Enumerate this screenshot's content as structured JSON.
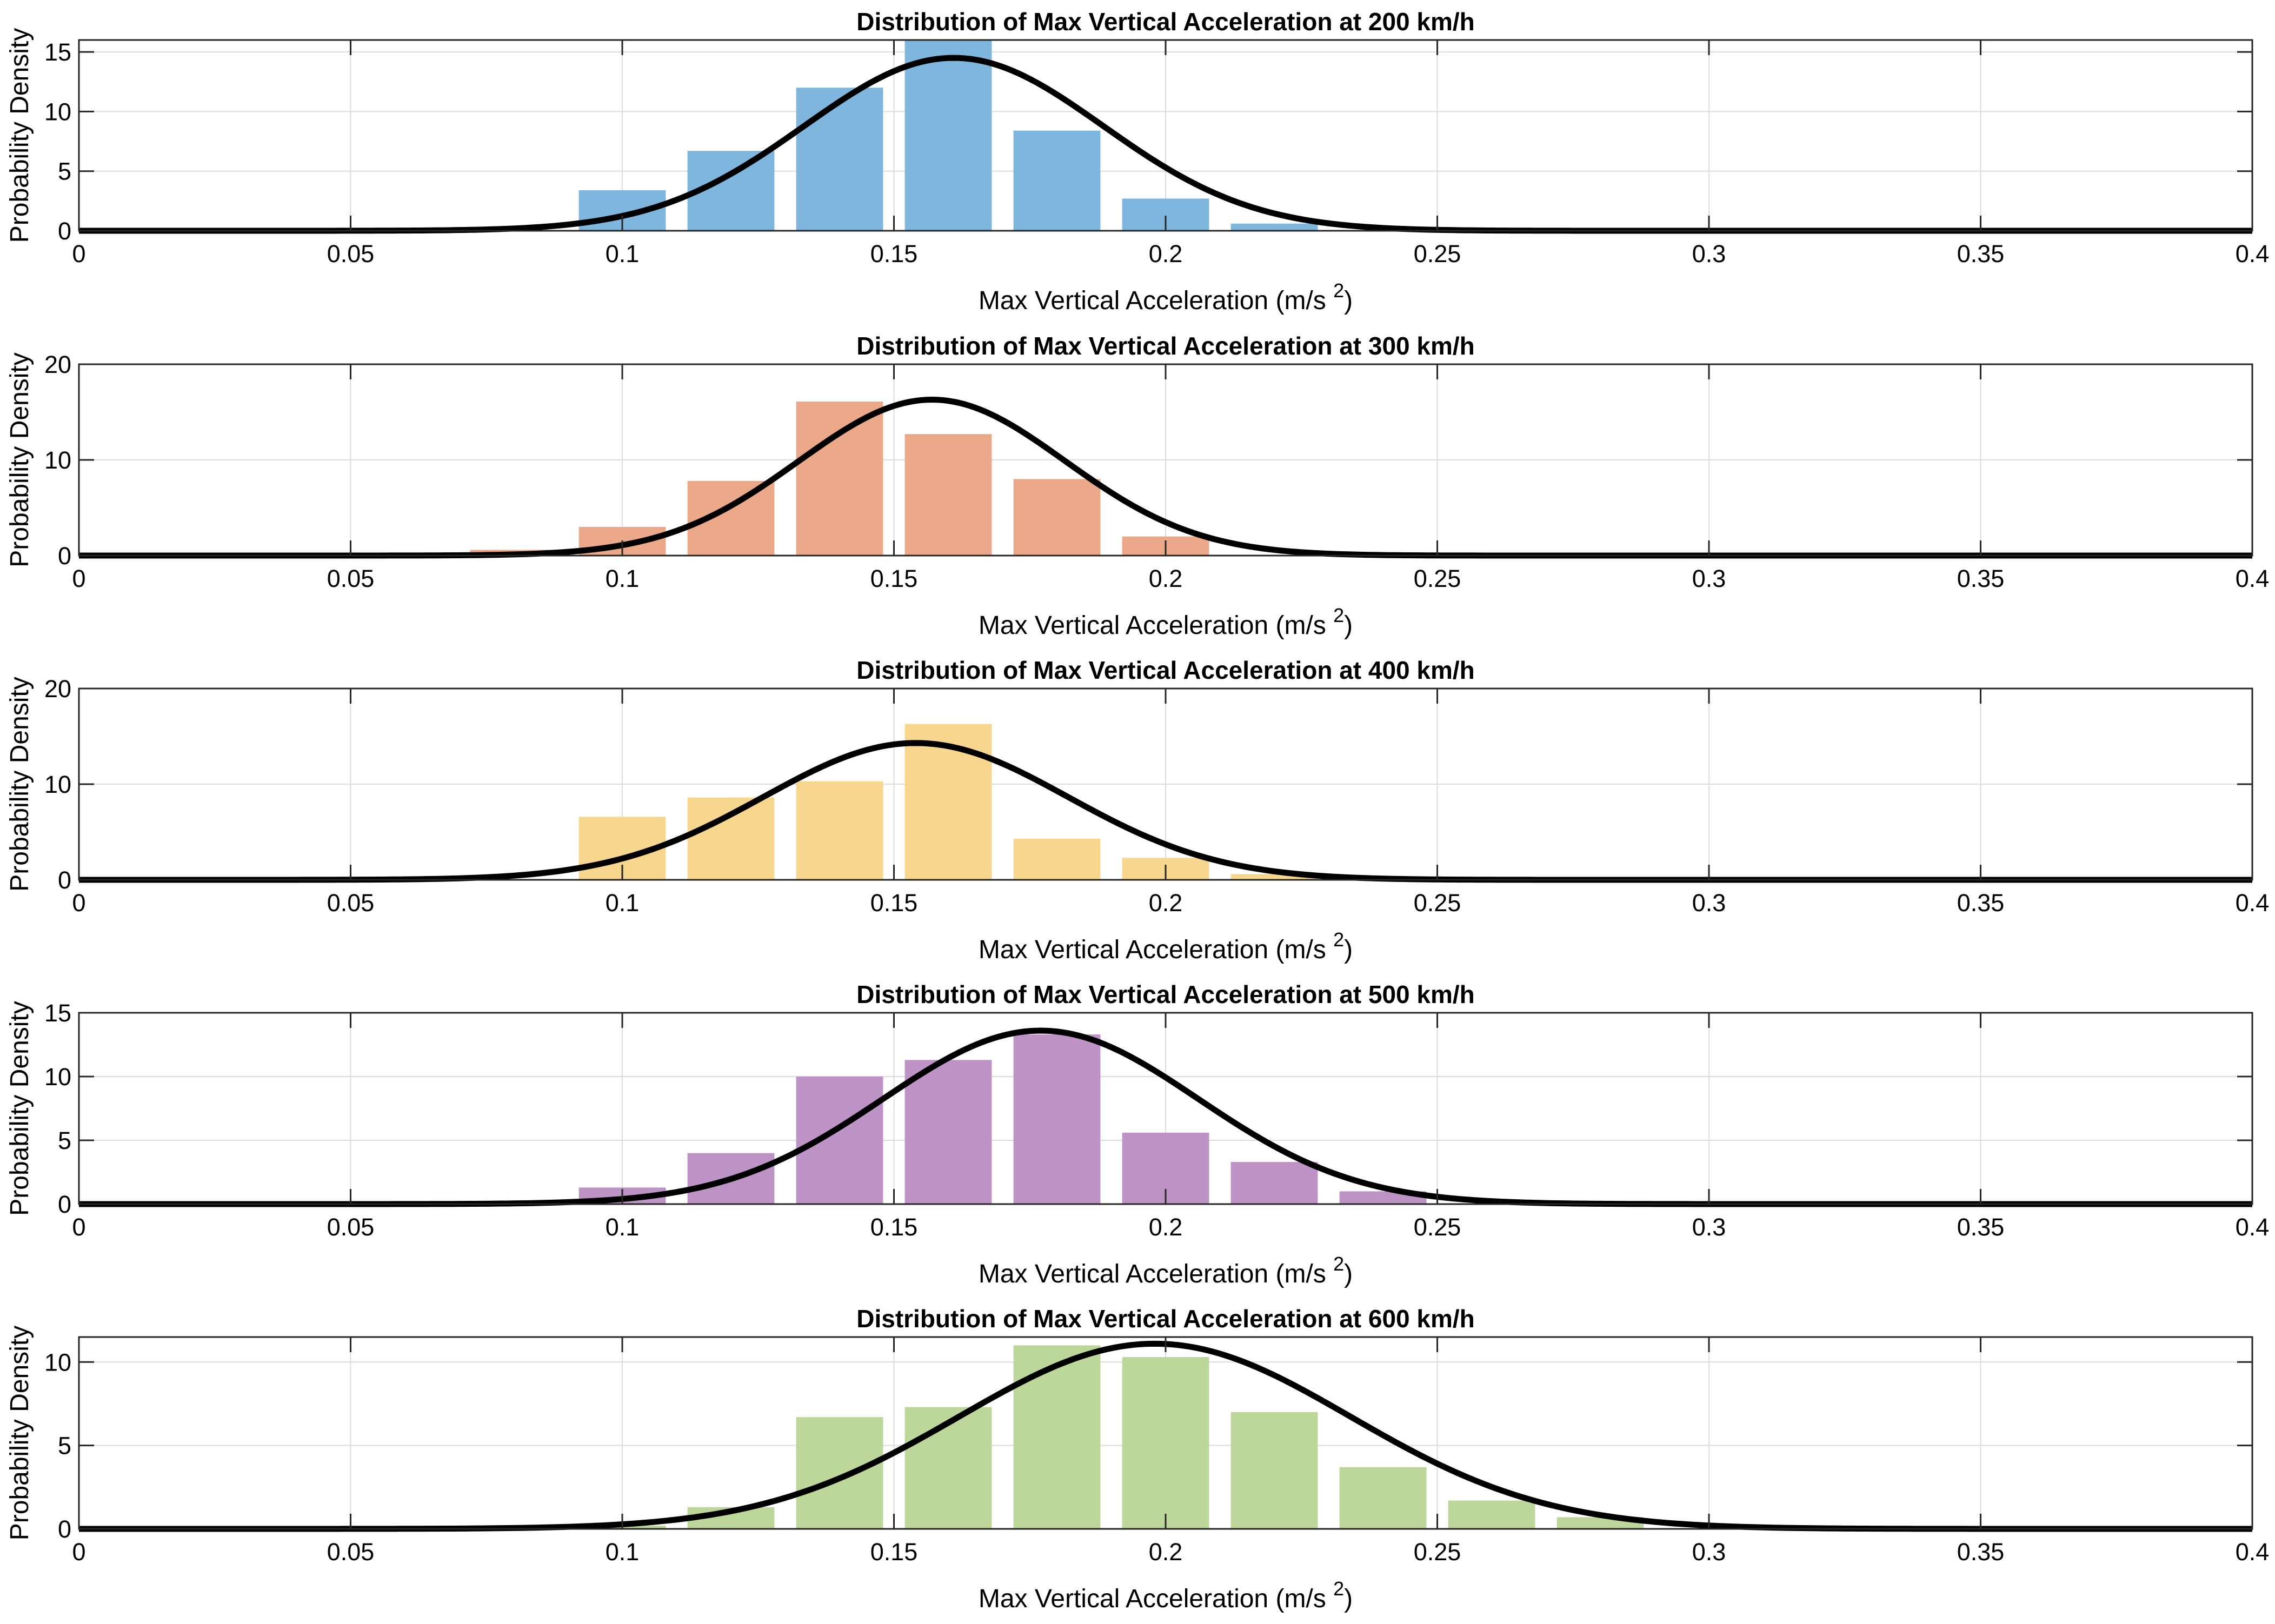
{
  "chart_data": [
    {
      "type": "bar",
      "title": "Distribution of Max Vertical Acceleration at 200 km/h",
      "xlabel_main": "Max Vertical Acceleration (m/s",
      "xlabel_exp": "2",
      "xlabel_close": ")",
      "ylabel": "Probability Density",
      "xlim": [
        0,
        0.4
      ],
      "ylim": [
        0,
        16
      ],
      "xticks": [
        0,
        0.05,
        0.1,
        0.15,
        0.2,
        0.25,
        0.3,
        0.35,
        0.4
      ],
      "xtick_labels": [
        "0",
        "0.05",
        "0.1",
        "0.15",
        "0.2",
        "0.25",
        "0.3",
        "0.35",
        "0.4"
      ],
      "yticks": [
        0,
        5,
        10,
        15
      ],
      "ytick_labels": [
        "0",
        "5",
        "10",
        "15"
      ],
      "bar_color": "#7EB6DD",
      "bin_width": 0.02,
      "bins": [
        0.1,
        0.12,
        0.14,
        0.16,
        0.18,
        0.2,
        0.22
      ],
      "values": [
        3.4,
        6.7,
        12.0,
        16.0,
        8.4,
        2.7,
        0.6
      ],
      "fit": {
        "mean": 0.161,
        "std": 0.0275,
        "peak": 14.5,
        "color": "#000000"
      }
    },
    {
      "type": "bar",
      "title": "Distribution of Max Vertical Acceleration at 300 km/h",
      "xlabel_main": "Max Vertical Acceleration (m/s",
      "xlabel_exp": "2",
      "xlabel_close": ")",
      "ylabel": "Probability Density",
      "xlim": [
        0,
        0.4
      ],
      "ylim": [
        0,
        20
      ],
      "xticks": [
        0,
        0.05,
        0.1,
        0.15,
        0.2,
        0.25,
        0.3,
        0.35,
        0.4
      ],
      "xtick_labels": [
        "0",
        "0.05",
        "0.1",
        "0.15",
        "0.2",
        "0.25",
        "0.3",
        "0.35",
        "0.4"
      ],
      "yticks": [
        0,
        10,
        20
      ],
      "ytick_labels": [
        "0",
        "10",
        "20"
      ],
      "bar_color": "#EBA98A",
      "bin_width": 0.02,
      "bins": [
        0.08,
        0.1,
        0.12,
        0.14,
        0.16,
        0.18,
        0.2
      ],
      "values": [
        0.6,
        3.0,
        7.8,
        16.1,
        12.7,
        8.0,
        2.0
      ],
      "fit": {
        "mean": 0.157,
        "std": 0.0245,
        "peak": 16.3,
        "color": "#000000"
      }
    },
    {
      "type": "bar",
      "title": "Distribution of Max Vertical Acceleration at 400 km/h",
      "xlabel_main": "Max Vertical Acceleration (m/s",
      "xlabel_exp": "2",
      "xlabel_close": ")",
      "ylabel": "Probability Density",
      "xlim": [
        0,
        0.4
      ],
      "ylim": [
        0,
        20
      ],
      "xticks": [
        0,
        0.05,
        0.1,
        0.15,
        0.2,
        0.25,
        0.3,
        0.35,
        0.4
      ],
      "xtick_labels": [
        "0",
        "0.05",
        "0.1",
        "0.15",
        "0.2",
        "0.25",
        "0.3",
        "0.35",
        "0.4"
      ],
      "yticks": [
        0,
        10,
        20
      ],
      "ytick_labels": [
        "0",
        "10",
        "20"
      ],
      "bar_color": "#F6D78D",
      "bin_width": 0.02,
      "bins": [
        0.1,
        0.12,
        0.14,
        0.16,
        0.18,
        0.2,
        0.22
      ],
      "values": [
        6.6,
        8.6,
        10.3,
        16.3,
        4.3,
        2.3,
        0.6
      ],
      "fit": {
        "mean": 0.154,
        "std": 0.028,
        "peak": 14.3,
        "color": "#000000"
      }
    },
    {
      "type": "bar",
      "title": "Distribution of Max Vertical Acceleration at 500 km/h",
      "xlabel_main": "Max Vertical Acceleration (m/s",
      "xlabel_exp": "2",
      "xlabel_close": ")",
      "ylabel": "Probability Density",
      "xlim": [
        0,
        0.4
      ],
      "ylim": [
        0,
        15
      ],
      "xticks": [
        0,
        0.05,
        0.1,
        0.15,
        0.2,
        0.25,
        0.3,
        0.35,
        0.4
      ],
      "xtick_labels": [
        "0",
        "0.05",
        "0.1",
        "0.15",
        "0.2",
        "0.25",
        "0.3",
        "0.35",
        "0.4"
      ],
      "yticks": [
        0,
        5,
        10,
        15
      ],
      "ytick_labels": [
        "0",
        "5",
        "10",
        "15"
      ],
      "bar_color": "#BE93C6",
      "bin_width": 0.02,
      "bins": [
        0.1,
        0.12,
        0.14,
        0.16,
        0.18,
        0.2,
        0.22,
        0.24
      ],
      "values": [
        1.3,
        4.0,
        10.0,
        11.3,
        13.3,
        5.6,
        3.3,
        1.0
      ],
      "fit": {
        "mean": 0.177,
        "std": 0.029,
        "peak": 13.6,
        "color": "#000000"
      }
    },
    {
      "type": "bar",
      "title": "Distribution of Max Vertical Acceleration at 600 km/h",
      "xlabel_main": "Max Vertical Acceleration (m/s",
      "xlabel_exp": "2",
      "xlabel_close": ")",
      "ylabel": "Probability Density",
      "xlim": [
        0,
        0.4
      ],
      "ylim": [
        0,
        11.5
      ],
      "xticks": [
        0,
        0.05,
        0.1,
        0.15,
        0.2,
        0.25,
        0.3,
        0.35,
        0.4
      ],
      "xtick_labels": [
        "0",
        "0.05",
        "0.1",
        "0.15",
        "0.2",
        "0.25",
        "0.3",
        "0.35",
        "0.4"
      ],
      "yticks": [
        0,
        5,
        10
      ],
      "ytick_labels": [
        "0",
        "5",
        "10"
      ],
      "bar_color": "#BDD79B",
      "bin_width": 0.02,
      "bins": [
        0.1,
        0.12,
        0.14,
        0.16,
        0.18,
        0.2,
        0.22,
        0.24,
        0.26,
        0.28
      ],
      "values": [
        0.2,
        1.3,
        6.7,
        7.3,
        11.0,
        10.3,
        7.0,
        3.7,
        1.7,
        0.7
      ],
      "fit": {
        "mean": 0.198,
        "std": 0.036,
        "peak": 11.1,
        "color": "#000000"
      }
    }
  ]
}
